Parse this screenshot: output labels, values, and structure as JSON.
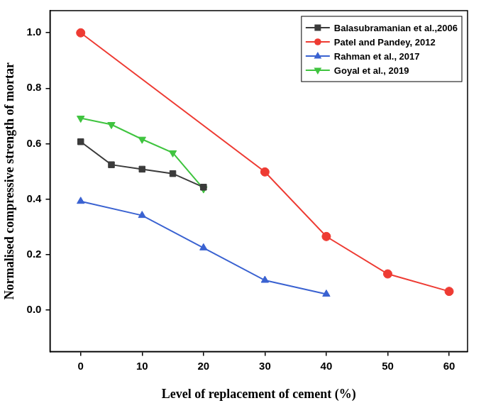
{
  "chart_data": {
    "type": "line",
    "x_label": "Level of replacement of cement (%)",
    "y_label": "Normalised compressive strength of mortar",
    "xlim": [
      -5,
      63
    ],
    "xticks": [
      0,
      10,
      20,
      30,
      40,
      50,
      60
    ],
    "ylim": [
      -0.15,
      1.08
    ],
    "yticks": [
      {
        "value": 0,
        "label": "0.0"
      },
      0.2,
      0.4,
      0.6,
      0.8,
      {
        "value": 1,
        "label": "1.0"
      }
    ],
    "grid": false,
    "legend": "top-right",
    "series": [
      {
        "name": "Balasubramanian et al.,2006",
        "color": "#3b3b3b",
        "marker": "square",
        "line_style": "solid",
        "x": [
          0,
          5,
          10,
          15,
          20
        ],
        "values": [
          0.607,
          0.524,
          0.508,
          0.492,
          0.443
        ]
      },
      {
        "name": "Patel and Pandey, 2012",
        "color": "#ee3b33",
        "marker": "circle",
        "line_style": "solid",
        "x": [
          0,
          30,
          40,
          50,
          60
        ],
        "values": [
          1.0,
          0.498,
          0.265,
          0.13,
          0.067
        ]
      },
      {
        "name": "Rahman et al., 2017",
        "color": "#3a62d1",
        "marker": "triangle",
        "line_style": "solid",
        "x": [
          0,
          10,
          20,
          30,
          40
        ],
        "values": [
          0.392,
          0.341,
          0.224,
          0.107,
          0.057
        ]
      },
      {
        "name": "Goyal et al., 2019",
        "color": "#3fc43f",
        "marker": "triangle-down",
        "line_style": "solid",
        "x": [
          0,
          5,
          10,
          15,
          20
        ],
        "values": [
          0.692,
          0.669,
          0.616,
          0.567,
          0.437
        ]
      }
    ]
  }
}
